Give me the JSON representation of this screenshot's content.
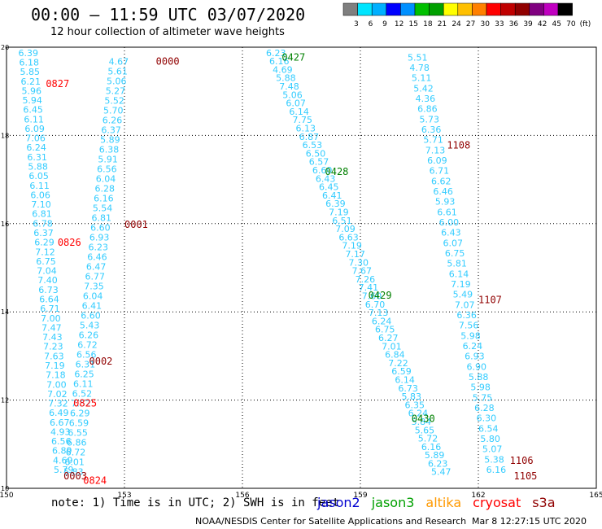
{
  "header": {
    "title": "00:00 – 11:59 UTC 03/07/2020",
    "subtitle": "12 hour collection of altimeter wave heights"
  },
  "colorbar": {
    "colors": [
      "#7f7f7f",
      "#00e5ff",
      "#00b0ff",
      "#0000ff",
      "#0090ff",
      "#00c000",
      "#00a000",
      "#ffff00",
      "#ffc000",
      "#ff8000",
      "#ff0000",
      "#c00000",
      "#900000",
      "#800080",
      "#c000c0",
      "#000000"
    ],
    "labels": [
      "3",
      "6",
      "9",
      "12",
      "15",
      "18",
      "21",
      "24",
      "27",
      "30",
      "33",
      "36",
      "39",
      "42",
      "45",
      "70",
      "(ft)"
    ]
  },
  "footer": {
    "note": "note: 1) Time is in UTC; 2) SWH is in feet",
    "credit": "NOAA/NESDIS Center for Satellite Applications and Research",
    "timestamp": "Mar  8 12:27:15 UTC 2020"
  },
  "satellites": [
    {
      "name": "jason2",
      "color": "#0000d0"
    },
    {
      "name": "jason3",
      "color": "#00a000"
    },
    {
      "name": "altika",
      "color": "#ff9900"
    },
    {
      "name": "cryosat",
      "color": "#ff0000"
    },
    {
      "name": "s3a",
      "color": "#900000"
    }
  ],
  "chart_data": {
    "type": "scatter",
    "title": "00:00 – 11:59 UTC 03/07/2020",
    "subtitle": "12 hour collection of altimeter wave heights",
    "xlim": [
      150,
      165
    ],
    "ylim": [
      10,
      20
    ],
    "x_ticks": [
      "150",
      "153",
      "156",
      "159",
      "162",
      "165"
    ],
    "y_ticks": [
      "10",
      "12",
      "14",
      "16",
      "18",
      "20"
    ],
    "grid": true,
    "value_color": "#33ccff",
    "tracks": [
      {
        "name": "s3a-1",
        "values": [
          "4.67",
          "5.61",
          "5.06",
          "5.27",
          "5.52",
          "5.70",
          "6.26",
          "6.37",
          "5.89",
          "6.38",
          "5.91",
          "6.56",
          "6.04",
          "6.28",
          "6.16",
          "5.54",
          "6.81",
          "6.60",
          "6.93",
          "6.23",
          "6.46",
          "6.47",
          "6.77",
          "7.35",
          "6.04",
          "6.41",
          "6.60",
          "5.43",
          "6.26",
          "6.72",
          "6.56",
          "6.31",
          "6.25",
          "6.11",
          "6.52",
          "7.52",
          "6.29",
          "6.59",
          "6.55",
          "6.86",
          "6.72",
          "6.01",
          "5.83"
        ],
        "x0": 152.6,
        "y0": 19.6,
        "x1": 151.45,
        "y1": 10.3
      },
      {
        "name": "cryosat-left",
        "values": [
          "6.39",
          "6.18",
          "5.85",
          "6.21",
          "5.96",
          "5.94",
          "6.45",
          "6.11",
          "6.09",
          "7.06",
          "6.24",
          "6.31",
          "5.88",
          "6.05",
          "6.11",
          "6.06",
          "7.10",
          "6.81",
          "6.78",
          "6.37",
          "6.29",
          "7.12",
          "6.75",
          "7.04",
          "7.40",
          "6.73",
          "6.64",
          "6.71",
          "7.00",
          "7.47",
          "7.43",
          "7.23",
          "7.63",
          "7.19",
          "7.18",
          "7.00",
          "7.02",
          "7.32",
          "6.49",
          "6.67",
          "4.93",
          "6.56",
          "6.89",
          "4.69",
          "5.79"
        ],
        "x0": 150.3,
        "y0": 19.8,
        "x1": 151.2,
        "y1": 10.35
      },
      {
        "name": "jason3-a",
        "values": [
          "6.23",
          "6.16",
          "4.69",
          "5.88",
          "7.48",
          "5.06",
          "6.07",
          "6.14",
          "7.75",
          "6.13",
          "6.87",
          "6.53",
          "6.50",
          "6.57",
          "6.60",
          "6.43",
          "6.45",
          "6.41",
          "6.39",
          "7.19",
          "6.51",
          "7.09",
          "6.63",
          "7.19",
          "7.17",
          "7.30",
          "7.67",
          "7.26",
          "7.41",
          "7.60",
          "6.70",
          "7.13",
          "6.24",
          "6.75",
          "6.27",
          "7.01",
          "6.84",
          "7.22",
          "6.59",
          "6.14",
          "6.73",
          "5.83",
          "6.35",
          "6.24",
          "5.84",
          "5.65",
          "5.72",
          "6.16",
          "5.89",
          "6.23",
          "5.47"
        ],
        "x0": 156.6,
        "y0": 19.8,
        "x1": 160.8,
        "y1": 10.3
      },
      {
        "name": "s3a-2",
        "values": [
          "5.51",
          "4.78",
          "5.11",
          "5.42",
          "4.36",
          "6.86",
          "5.73",
          "6.36",
          "5.71",
          "7.13",
          "6.09",
          "6.71",
          "6.62",
          "6.46",
          "5.93",
          "6.61",
          "6.00",
          "6.43",
          "6.07",
          "6.75",
          "5.81",
          "6.14",
          "7.19",
          "5.49",
          "7.07",
          "6.36",
          "7.56",
          "5.98",
          "6.24",
          "6.93",
          "6.90",
          "5.88",
          "5.98",
          "5.75",
          "6.28",
          "6.30",
          "6.54",
          "5.80",
          "5.07",
          "5.38",
          "6.16"
        ],
        "x0": 160.2,
        "y0": 19.7,
        "x1": 162.2,
        "y1": 10.35
      }
    ],
    "time_labels": [
      {
        "text": "0000",
        "x": 153.8,
        "y": 19.6,
        "color": "#900000"
      },
      {
        "text": "0827",
        "x": 151.0,
        "y": 19.1,
        "color": "#ff0000"
      },
      {
        "text": "0001",
        "x": 153.0,
        "y": 15.9,
        "color": "#900000"
      },
      {
        "text": "0826",
        "x": 151.3,
        "y": 15.5,
        "color": "#ff0000"
      },
      {
        "text": "0002",
        "x": 152.1,
        "y": 12.8,
        "color": "#900000"
      },
      {
        "text": "0825",
        "x": 151.7,
        "y": 11.85,
        "color": "#ff0000"
      },
      {
        "text": "0003",
        "x": 151.45,
        "y": 10.2,
        "color": "#900000"
      },
      {
        "text": "0824",
        "x": 151.95,
        "y": 10.1,
        "color": "#ff0000"
      },
      {
        "text": "0427",
        "x": 157.0,
        "y": 19.7,
        "color": "#008000"
      },
      {
        "text": "0428",
        "x": 158.1,
        "y": 17.1,
        "color": "#008000"
      },
      {
        "text": "0429",
        "x": 159.2,
        "y": 14.3,
        "color": "#008000"
      },
      {
        "text": "0430",
        "x": 160.3,
        "y": 11.5,
        "color": "#008000"
      },
      {
        "text": "1108",
        "x": 161.2,
        "y": 17.7,
        "color": "#900000"
      },
      {
        "text": "1107",
        "x": 162.0,
        "y": 14.2,
        "color": "#900000"
      },
      {
        "text": "1106",
        "x": 162.8,
        "y": 10.55,
        "color": "#900000"
      },
      {
        "text": "1105",
        "x": 162.9,
        "y": 10.2,
        "color": "#900000"
      }
    ]
  }
}
